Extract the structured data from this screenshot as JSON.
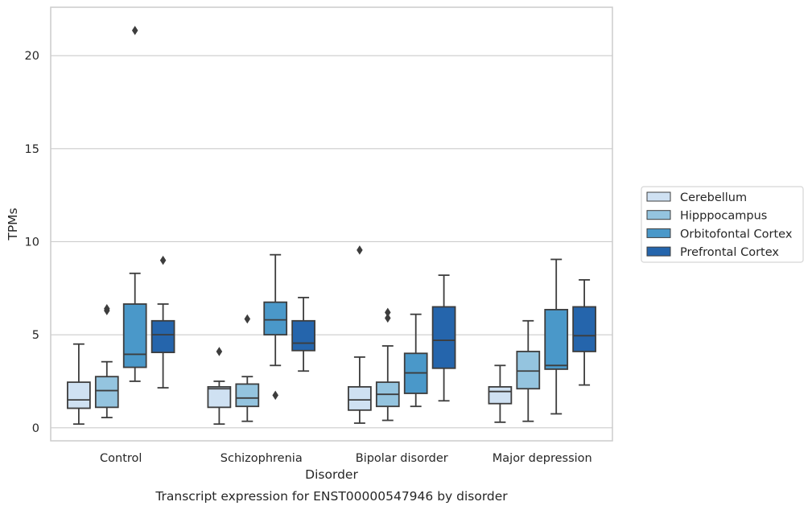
{
  "chart_data": {
    "type": "box",
    "title": "Transcript expression for ENST00000547946 by disorder",
    "xlabel": "Disorder",
    "ylabel": "TPMs",
    "ylim": [
      -0.7,
      22.6
    ],
    "yticks": [
      0,
      5,
      10,
      15,
      20
    ],
    "ytick_labels": [
      "0",
      "5",
      "10",
      "15",
      "20"
    ],
    "grid": "horizontal",
    "legend_position": "right",
    "categories": [
      "Control",
      "Schizophrenia",
      "Bipolar disorder",
      "Major depression"
    ],
    "series": [
      {
        "name": "Cerebellum",
        "color": "#cfe1f2",
        "boxes": [
          {
            "category": "Control",
            "whisker_low": 0.2,
            "q1": 1.05,
            "median": 1.5,
            "q3": 2.45,
            "whisker_high": 4.5,
            "outliers": []
          },
          {
            "category": "Schizophrenia",
            "whisker_low": 0.2,
            "q1": 1.1,
            "median": 2.1,
            "q3": 2.2,
            "whisker_high": 2.5,
            "outliers": [
              4.1
            ]
          },
          {
            "category": "Bipolar disorder",
            "whisker_low": 0.25,
            "q1": 0.95,
            "median": 1.5,
            "q3": 2.2,
            "whisker_high": 3.8,
            "outliers": [
              9.55
            ]
          },
          {
            "category": "Major depression",
            "whisker_low": 0.3,
            "q1": 1.3,
            "median": 1.95,
            "q3": 2.2,
            "whisker_high": 3.35,
            "outliers": []
          }
        ]
      },
      {
        "name": "Hipppocampus",
        "color": "#94c4df",
        "boxes": [
          {
            "category": "Control",
            "whisker_low": 0.55,
            "q1": 1.1,
            "median": 2.0,
            "q3": 2.75,
            "whisker_high": 3.55,
            "outliers": [
              6.3,
              6.4
            ]
          },
          {
            "category": "Schizophrenia",
            "whisker_low": 0.35,
            "q1": 1.15,
            "median": 1.6,
            "q3": 2.35,
            "whisker_high": 2.75,
            "outliers": [
              5.85
            ]
          },
          {
            "category": "Bipolar disorder",
            "whisker_low": 0.4,
            "q1": 1.15,
            "median": 1.8,
            "q3": 2.45,
            "whisker_high": 4.4,
            "outliers": [
              5.9,
              6.2
            ]
          },
          {
            "category": "Major depression",
            "whisker_low": 0.35,
            "q1": 2.1,
            "median": 3.05,
            "q3": 4.1,
            "whisker_high": 5.75,
            "outliers": []
          }
        ]
      },
      {
        "name": "Orbitofontal Cortex",
        "color": "#4a98c9",
        "boxes": [
          {
            "category": "Control",
            "whisker_low": 2.5,
            "q1": 3.25,
            "median": 3.95,
            "q3": 6.65,
            "whisker_high": 8.3,
            "outliers": [
              21.35
            ]
          },
          {
            "category": "Schizophrenia",
            "whisker_low": 3.35,
            "q1": 5.0,
            "median": 5.8,
            "q3": 6.75,
            "whisker_high": 9.3,
            "outliers": [
              1.75
            ]
          },
          {
            "category": "Bipolar disorder",
            "whisker_low": 1.15,
            "q1": 1.85,
            "median": 2.95,
            "q3": 4.0,
            "whisker_high": 6.1,
            "outliers": []
          },
          {
            "category": "Major depression",
            "whisker_low": 0.75,
            "q1": 3.15,
            "median": 3.35,
            "q3": 6.35,
            "whisker_high": 9.05,
            "outliers": []
          }
        ]
      },
      {
        "name": "Prefrontal Cortex",
        "color": "#2565ac",
        "boxes": [
          {
            "category": "Control",
            "whisker_low": 2.15,
            "q1": 4.05,
            "median": 5.0,
            "q3": 5.75,
            "whisker_high": 6.65,
            "outliers": [
              9.0
            ]
          },
          {
            "category": "Schizophrenia",
            "whisker_low": 3.05,
            "q1": 4.15,
            "median": 4.55,
            "q3": 5.75,
            "whisker_high": 7.0,
            "outliers": []
          },
          {
            "category": "Bipolar disorder",
            "whisker_low": 1.45,
            "q1": 3.2,
            "median": 4.7,
            "q3": 6.5,
            "whisker_high": 8.2,
            "outliers": []
          },
          {
            "category": "Major depression",
            "whisker_low": 2.3,
            "q1": 4.1,
            "median": 4.95,
            "q3": 6.5,
            "whisker_high": 7.95,
            "outliers": []
          }
        ]
      }
    ]
  },
  "colors": {
    "grid": "#cccccc",
    "axis_frame": "#cccccc",
    "box_edge": "#3d3d3d",
    "text": "#262626"
  }
}
